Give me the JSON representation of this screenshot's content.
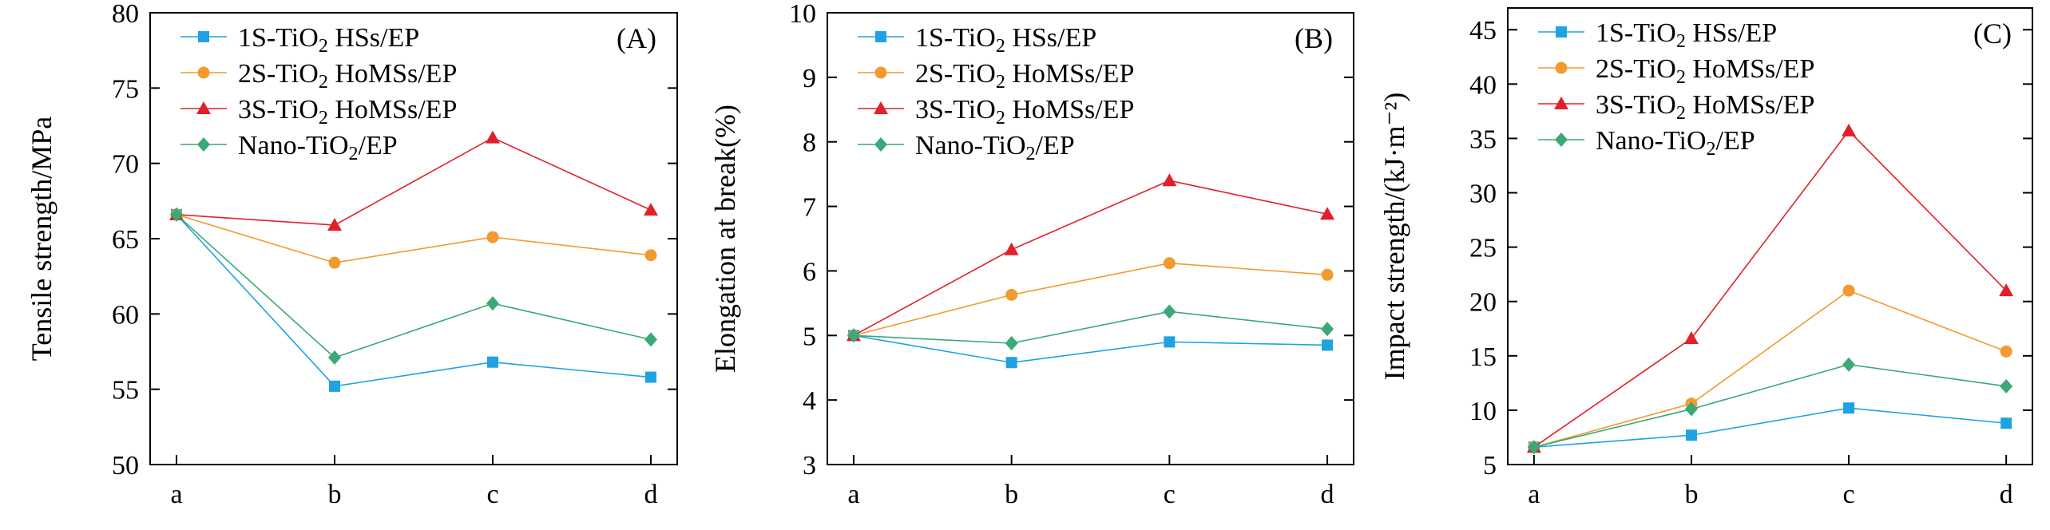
{
  "chart_data": [
    {
      "type": "line",
      "panel_label": "(A)",
      "categories": [
        "a",
        "b",
        "c",
        "d"
      ],
      "ylabel": "Tensile strength/MPa",
      "xlabel": "",
      "ylim": [
        50,
        80
      ],
      "yticks": [
        "50",
        "55",
        "60",
        "65",
        "70",
        "75",
        "80"
      ],
      "legend_position": "top-left",
      "series": [
        {
          "name": "1S-TiO2 HSs/EP",
          "label_parts": [
            "1S-TiO",
            "2",
            " HSs/EP"
          ],
          "color": "#1ea3e0",
          "marker": "square",
          "values": [
            66.6,
            55.2,
            56.8,
            55.8
          ]
        },
        {
          "name": "2S-TiO2 HoMSs/EP",
          "label_parts": [
            "2S-TiO",
            "2",
            " HoMSs/EP"
          ],
          "color": "#f39a2e",
          "marker": "circle",
          "values": [
            66.6,
            63.4,
            65.1,
            63.9
          ]
        },
        {
          "name": "3S-TiO2 HoMSs/EP",
          "label_parts": [
            "3S-TiO",
            "2",
            " HoMSs/EP"
          ],
          "color": "#e0202a",
          "marker": "triangle",
          "values": [
            66.6,
            65.9,
            71.7,
            66.9
          ]
        },
        {
          "name": "Nano-TiO2/EP",
          "label_parts": [
            "Nano-TiO",
            "2",
            "/EP"
          ],
          "color": "#3aa877",
          "marker": "diamond",
          "values": [
            66.6,
            57.1,
            60.7,
            58.3
          ]
        }
      ]
    },
    {
      "type": "line",
      "panel_label": "(B)",
      "categories": [
        "a",
        "b",
        "c",
        "d"
      ],
      "ylabel": "Elongation at break(%)",
      "xlabel": "",
      "ylim": [
        3,
        10
      ],
      "yticks": [
        "3",
        "4",
        "5",
        "6",
        "7",
        "8",
        "9",
        "10"
      ],
      "legend_position": "top-left",
      "series": [
        {
          "name": "1S-TiO2 HSs/EP",
          "label_parts": [
            "1S-TiO",
            "2",
            " HSs/EP"
          ],
          "color": "#1ea3e0",
          "marker": "square",
          "values": [
            5.0,
            4.58,
            4.9,
            4.85
          ]
        },
        {
          "name": "2S-TiO2 HoMSs/EP",
          "label_parts": [
            "2S-TiO",
            "2",
            " HoMSs/EP"
          ],
          "color": "#f39a2e",
          "marker": "circle",
          "values": [
            5.0,
            5.63,
            6.12,
            5.94
          ]
        },
        {
          "name": "3S-TiO2 HoMSs/EP",
          "label_parts": [
            "3S-TiO",
            "2",
            " HoMSs/EP"
          ],
          "color": "#e0202a",
          "marker": "triangle",
          "values": [
            5.0,
            6.33,
            7.4,
            6.88
          ]
        },
        {
          "name": "Nano-TiO2/EP",
          "label_parts": [
            "Nano-TiO",
            "2",
            "/EP"
          ],
          "color": "#3aa877",
          "marker": "diamond",
          "values": [
            5.0,
            4.88,
            5.37,
            5.1
          ]
        }
      ]
    },
    {
      "type": "line",
      "panel_label": "(C)",
      "categories": [
        "a",
        "b",
        "c",
        "d"
      ],
      "ylabel": "Impact strength/(kJ·m⁻²)",
      "xlabel": "",
      "ylim": [
        5,
        47
      ],
      "yticks": [
        "5",
        "10",
        "15",
        "20",
        "25",
        "30",
        "35",
        "40",
        "45"
      ],
      "legend_position": "top-left",
      "series": [
        {
          "name": "1S-TiO2 HSs/EP",
          "label_parts": [
            "1S-TiO",
            "2",
            " HSs/EP"
          ],
          "color": "#1ea3e0",
          "marker": "square",
          "values": [
            6.6,
            7.7,
            10.2,
            8.8
          ]
        },
        {
          "name": "2S-TiO2 HoMSs/EP",
          "label_parts": [
            "2S-TiO",
            "2",
            " HoMSs/EP"
          ],
          "color": "#f39a2e",
          "marker": "circle",
          "values": [
            6.6,
            10.6,
            21.0,
            15.4
          ]
        },
        {
          "name": "3S-TiO2 HoMSs/EP",
          "label_parts": [
            "3S-TiO",
            "2",
            " HoMSs/EP"
          ],
          "color": "#e0202a",
          "marker": "triangle",
          "values": [
            6.6,
            16.6,
            35.7,
            21.0
          ]
        },
        {
          "name": "Nano-TiO2/EP",
          "label_parts": [
            "Nano-TiO",
            "2",
            "/EP"
          ],
          "color": "#3aa877",
          "marker": "diamond",
          "values": [
            6.6,
            10.1,
            14.2,
            12.2
          ]
        }
      ]
    }
  ]
}
